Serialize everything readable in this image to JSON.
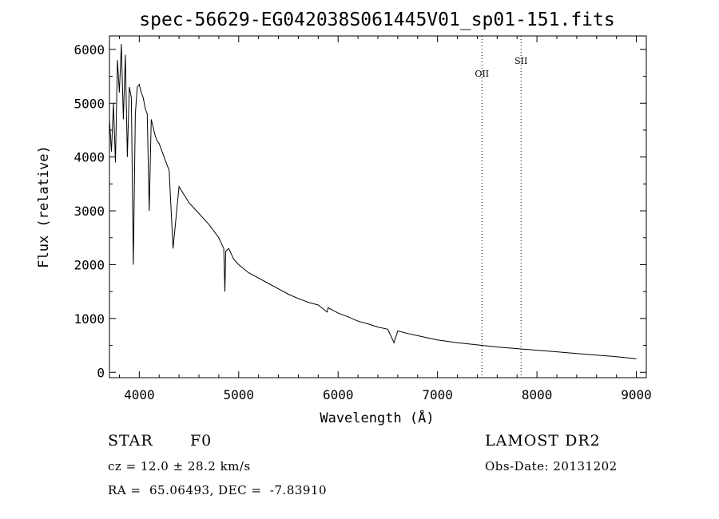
{
  "chart_data": {
    "type": "line",
    "title": "spec-56629-EG042038S061445V01_sp01-151.fits",
    "xlabel": "Wavelength (Å)",
    "ylabel": "Flux (relative)",
    "xlim": [
      3700,
      9100
    ],
    "ylim": [
      -100,
      6250
    ],
    "xticks": [
      4000,
      5000,
      6000,
      7000,
      8000,
      9000
    ],
    "yticks": [
      0,
      1000,
      2000,
      3000,
      4000,
      5000,
      6000
    ],
    "grid": false,
    "series": [
      {
        "x": [
          3700,
          3720,
          3740,
          3760,
          3780,
          3800,
          3820,
          3840,
          3860,
          3880,
          3900,
          3920,
          3940,
          3960,
          3980,
          4000,
          4020,
          4040,
          4060,
          4080,
          4100,
          4120,
          4140,
          4160,
          4180,
          4200,
          4250,
          4300,
          4340,
          4400,
          4450,
          4500,
          4600,
          4700,
          4800,
          4850,
          4861,
          4870,
          4900,
          4950,
          5000,
          5100,
          5200,
          5300,
          5400,
          5500,
          5600,
          5700,
          5800,
          5890,
          5900,
          6000,
          6100,
          6200,
          6300,
          6400,
          6500,
          6562,
          6600,
          6700,
          6800,
          6900,
          7000,
          7200,
          7400,
          7600,
          7800,
          8000,
          8200,
          8400,
          8600,
          8800,
          9000
        ],
        "y": [
          4700,
          4100,
          5000,
          3900,
          5800,
          5200,
          6100,
          4700,
          5900,
          4000,
          5300,
          5100,
          2000,
          4800,
          5300,
          5350,
          5200,
          5100,
          4900,
          4800,
          3000,
          4700,
          4550,
          4400,
          4300,
          4250,
          4000,
          3750,
          2300,
          3450,
          3300,
          3150,
          2950,
          2750,
          2500,
          2300,
          1500,
          2250,
          2300,
          2100,
          2000,
          1850,
          1750,
          1650,
          1550,
          1450,
          1370,
          1300,
          1250,
          1120,
          1200,
          1100,
          1030,
          950,
          900,
          840,
          800,
          550,
          770,
          720,
          680,
          640,
          600,
          550,
          510,
          470,
          440,
          410,
          380,
          350,
          320,
          290,
          250
        ]
      }
    ],
    "line_markers": [
      {
        "label": "OII",
        "x": 7447
      },
      {
        "label": "SII",
        "x": 7840
      }
    ]
  },
  "info": {
    "object_type": "STAR",
    "subclass": "F0",
    "survey": "LAMOST DR2",
    "cz": "cz = 12.0 ± 28.2 km/s",
    "obs_date": "Obs-Date: 20131202",
    "coords": "RA =  65.06493, DEC =  -7.83910"
  }
}
